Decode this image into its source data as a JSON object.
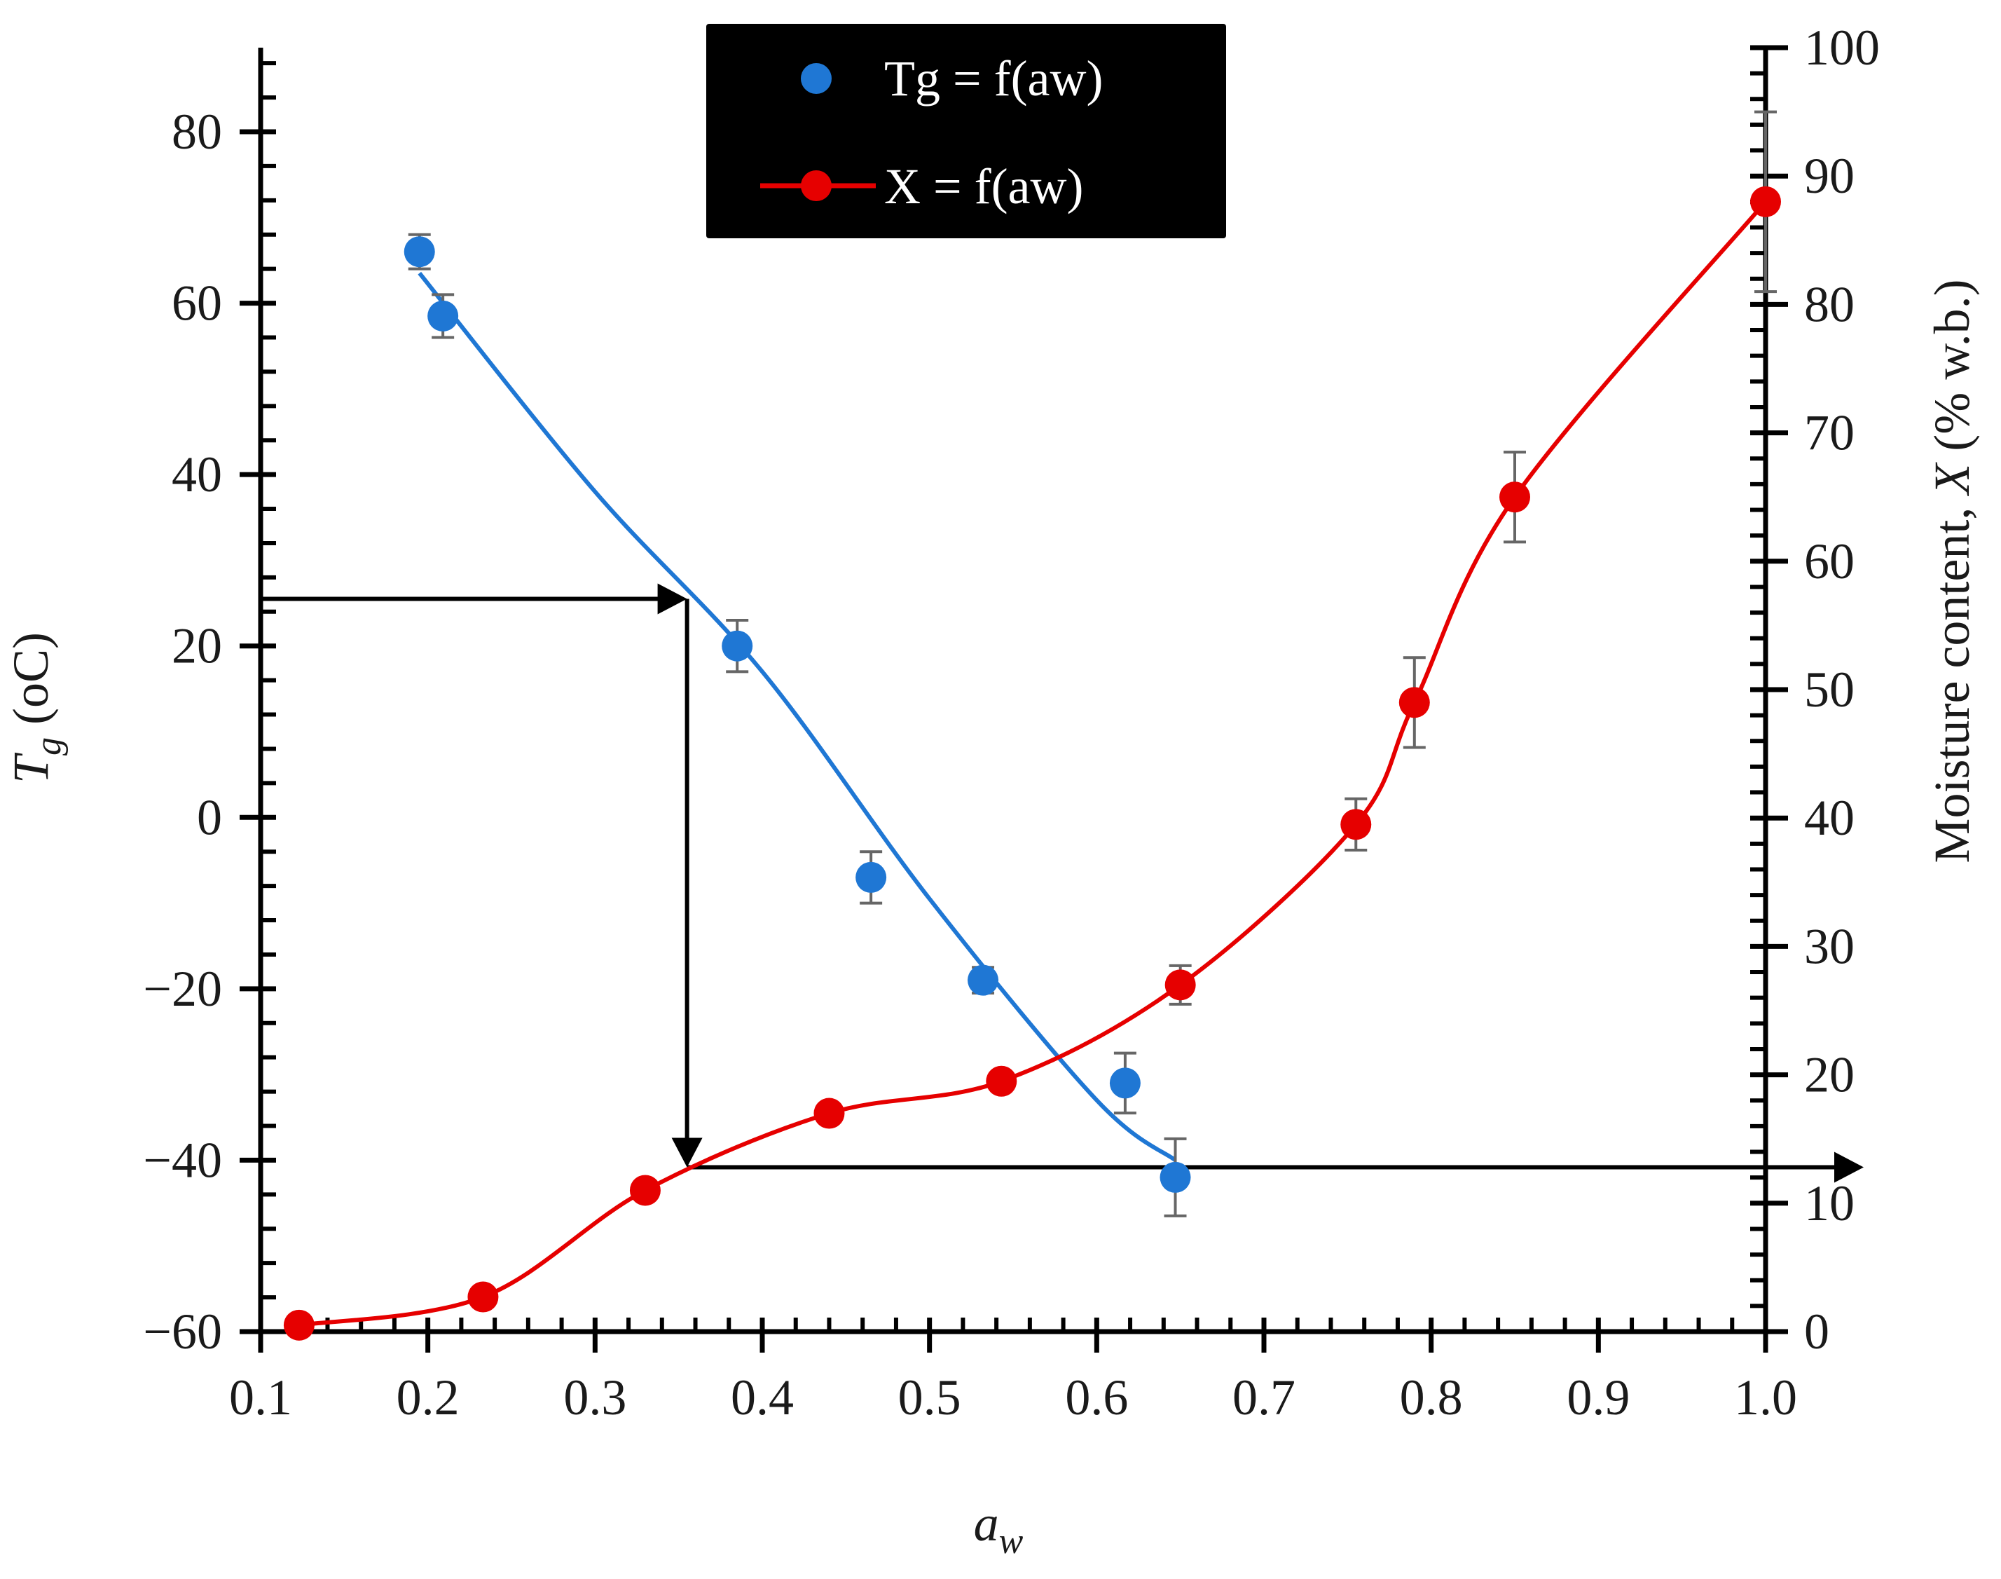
{
  "chart_data": {
    "type": "scatter",
    "x_axis": {
      "label": "a",
      "label_sub": "w",
      "range": [
        0.1,
        1.0
      ],
      "ticks": [
        "0.1",
        "0.2",
        "0.3",
        "0.4",
        "0.5",
        "0.6",
        "0.7",
        "0.8",
        "0.9",
        "1.0"
      ]
    },
    "y_left_axis": {
      "label": "T",
      "label_sub": "g",
      "label_suffix": " (oC)",
      "range": [
        -60,
        90
      ],
      "ticks": [
        "80",
        "60",
        "40",
        "20",
        "0",
        "−20",
        "−40",
        "−60"
      ],
      "tick_values": [
        80,
        60,
        40,
        20,
        0,
        -20,
        -40,
        -60
      ]
    },
    "y_right_axis": {
      "label_prefix": "Moisture content, ",
      "label_var": "X",
      "label_suffix": " (% w.b.)",
      "range": [
        0,
        100
      ],
      "ticks": [
        "100",
        "90",
        "80",
        "70",
        "60",
        "50",
        "40",
        "30",
        "20",
        "10",
        "0"
      ],
      "tick_values": [
        100,
        90,
        80,
        70,
        60,
        50,
        40,
        30,
        20,
        10,
        0
      ]
    },
    "legend": {
      "position": "top-center",
      "entries": [
        "Tg = f(aw)",
        "X = f(aw)"
      ]
    },
    "series": [
      {
        "name": "Tg = f(aw)",
        "axis": "left",
        "color": "#1f77d4",
        "x": [
          0.195,
          0.209,
          0.385,
          0.465,
          0.532,
          0.617,
          0.647
        ],
        "y": [
          66,
          58.5,
          20,
          -7,
          -19,
          -31,
          -42
        ],
        "err": [
          2,
          2.5,
          3,
          3,
          1.5,
          3.5,
          4.5
        ],
        "fit_x": [
          0.195,
          0.3,
          0.4,
          0.5,
          0.6,
          0.647
        ],
        "fit_y": [
          63.5,
          38,
          17,
          -9.5,
          -33,
          -40
        ]
      },
      {
        "name": "X = f(aw)",
        "axis": "right",
        "color": "#e60000",
        "x": [
          0.123,
          0.233,
          0.33,
          0.44,
          0.543,
          0.65,
          0.755,
          0.79,
          0.85,
          1.0
        ],
        "y": [
          0.5,
          2.7,
          11,
          17,
          19.5,
          27,
          39.5,
          49,
          65,
          88
        ],
        "err": [
          0,
          0,
          0,
          0,
          0,
          1.5,
          2,
          3.5,
          3.5,
          7
        ]
      }
    ],
    "annotations": {
      "arrow_path_description": "horizontal arrow at Tg=25.5 to aw=0.355, vertical arrow down to X=13, horizontal arrow to right axis",
      "arrow_tg": 25.5,
      "arrow_aw": 0.355,
      "arrow_x": 12.8
    }
  }
}
